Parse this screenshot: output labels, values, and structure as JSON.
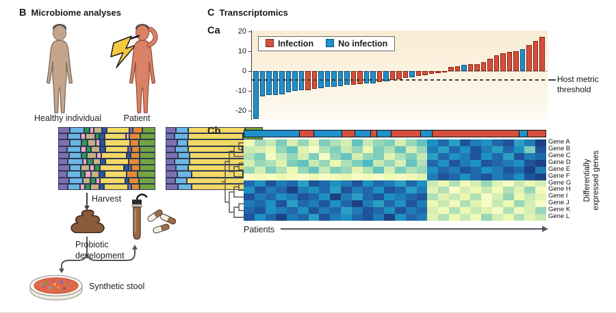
{
  "panel_b": {
    "label": "B",
    "title": "Microbiome analyses",
    "healthy_label": "Healthy individual",
    "patient_label": "Patient",
    "harvest_label": "Harvest",
    "probiotic_label": "Probiotic development",
    "synthetic_label": "Synthetic stool",
    "palette": {
      "P": "#7e6fb5",
      "S": "#6cb6e3",
      "G": "#2a9a4f",
      "K": "#f2a8c4",
      "T": "#c6b089",
      "D": "#2b55a0",
      "Y": "#f2d864",
      "O": "#e58a33",
      "V": "#74a43f"
    },
    "healthy_rows": [
      [
        [
          "P",
          12
        ],
        [
          "S",
          16
        ],
        [
          "G",
          5
        ],
        [
          "K",
          3
        ],
        [
          "T",
          8
        ],
        [
          "D",
          4
        ],
        [
          "Y",
          26
        ],
        [
          "P",
          2
        ],
        [
          "O",
          10
        ],
        [
          "V",
          14
        ]
      ],
      [
        [
          "P",
          10
        ],
        [
          "S",
          14
        ],
        [
          "K",
          4
        ],
        [
          "T",
          10
        ],
        [
          "G",
          3
        ],
        [
          "D",
          5
        ],
        [
          "Y",
          24
        ],
        [
          "K",
          2
        ],
        [
          "O",
          12
        ],
        [
          "V",
          16
        ]
      ],
      [
        [
          "P",
          12
        ],
        [
          "S",
          12
        ],
        [
          "G",
          6
        ],
        [
          "T",
          8
        ],
        [
          "K",
          3
        ],
        [
          "D",
          4
        ],
        [
          "Y",
          28
        ],
        [
          "O",
          9
        ],
        [
          "V",
          18
        ]
      ],
      [
        [
          "P",
          9
        ],
        [
          "S",
          15
        ],
        [
          "K",
          5
        ],
        [
          "G",
          4
        ],
        [
          "T",
          9
        ],
        [
          "D",
          5
        ],
        [
          "Y",
          25
        ],
        [
          "P",
          3
        ],
        [
          "O",
          8
        ],
        [
          "V",
          17
        ]
      ],
      [
        [
          "P",
          11
        ],
        [
          "S",
          13
        ],
        [
          "G",
          5
        ],
        [
          "T",
          10
        ],
        [
          "K",
          4
        ],
        [
          "Y",
          28
        ],
        [
          "D",
          3
        ],
        [
          "O",
          9
        ],
        [
          "V",
          17
        ]
      ],
      [
        [
          "P",
          10
        ],
        [
          "S",
          16
        ],
        [
          "K",
          3
        ],
        [
          "G",
          6
        ],
        [
          "T",
          7
        ],
        [
          "D",
          4
        ],
        [
          "Y",
          26
        ],
        [
          "O",
          11
        ],
        [
          "V",
          17
        ]
      ],
      [
        [
          "P",
          12
        ],
        [
          "S",
          12
        ],
        [
          "T",
          9
        ],
        [
          "K",
          4
        ],
        [
          "G",
          5
        ],
        [
          "Y",
          27
        ],
        [
          "D",
          4
        ],
        [
          "P",
          2
        ],
        [
          "O",
          8
        ],
        [
          "V",
          17
        ]
      ],
      [
        [
          "P",
          9
        ],
        [
          "S",
          14
        ],
        [
          "G",
          4
        ],
        [
          "K",
          5
        ],
        [
          "T",
          8
        ],
        [
          "D",
          5
        ],
        [
          "Y",
          24
        ],
        [
          "O",
          12
        ],
        [
          "V",
          19
        ]
      ],
      [
        [
          "P",
          11
        ],
        [
          "S",
          15
        ],
        [
          "T",
          7
        ],
        [
          "G",
          5
        ],
        [
          "K",
          3
        ],
        [
          "Y",
          28
        ],
        [
          "D",
          3
        ],
        [
          "O",
          10
        ],
        [
          "V",
          18
        ]
      ],
      [
        [
          "P",
          10
        ],
        [
          "S",
          13
        ],
        [
          "K",
          4
        ],
        [
          "G",
          5
        ],
        [
          "T",
          9
        ],
        [
          "D",
          4
        ],
        [
          "Y",
          27
        ],
        [
          "P",
          3
        ],
        [
          "O",
          8
        ],
        [
          "V",
          17
        ]
      ]
    ],
    "patient_rows": [
      [
        [
          "P",
          10
        ],
        [
          "S",
          12
        ],
        [
          "Y",
          60
        ],
        [
          "V",
          18
        ]
      ],
      [
        [
          "P",
          8
        ],
        [
          "S",
          14
        ],
        [
          "Y",
          58
        ],
        [
          "V",
          20
        ]
      ],
      [
        [
          "P",
          11
        ],
        [
          "S",
          10
        ],
        [
          "Y",
          62
        ],
        [
          "V",
          17
        ]
      ],
      [
        [
          "P",
          9
        ],
        [
          "S",
          13
        ],
        [
          "Y",
          57
        ],
        [
          "V",
          21
        ]
      ],
      [
        [
          "P",
          12
        ],
        [
          "S",
          11
        ],
        [
          "Y",
          59
        ],
        [
          "V",
          18
        ]
      ],
      [
        [
          "P",
          8
        ],
        [
          "S",
          15
        ],
        [
          "Y",
          60
        ],
        [
          "V",
          17
        ]
      ],
      [
        [
          "P",
          10
        ],
        [
          "S",
          12
        ],
        [
          "Y",
          62
        ],
        [
          "V",
          16
        ]
      ],
      [
        [
          "P",
          11
        ],
        [
          "S",
          14
        ],
        [
          "Y",
          55
        ],
        [
          "V",
          20
        ]
      ],
      [
        [
          "P",
          9
        ],
        [
          "S",
          11
        ],
        [
          "Y",
          63
        ],
        [
          "V",
          17
        ]
      ],
      [
        [
          "P",
          12
        ],
        [
          "S",
          13
        ],
        [
          "Y",
          58
        ],
        [
          "V",
          17
        ]
      ]
    ]
  },
  "panel_c": {
    "label": "C",
    "title": "Transcriptomics",
    "ca_label": "Ca",
    "cb_label": "Cb",
    "legend": [
      {
        "key": "infection",
        "label": "Infection",
        "color": "#d4503c",
        "border": "#8a1f10"
      },
      {
        "key": "no_infection",
        "label": "No infection",
        "color": "#2090cb",
        "border": "#0c4f7d"
      }
    ],
    "threshold_label": "Host metric threshold",
    "patients_label": "Patients",
    "genes_axis_label": "Differentially\nexpressed genes"
  },
  "chart_data": [
    {
      "type": "bar",
      "title": "Ca",
      "ylabel": "Host metric",
      "ylim": [
        -25,
        20
      ],
      "yticks": [
        20,
        10,
        0,
        -10,
        -20
      ],
      "grid": false,
      "legend_position": "top-left",
      "threshold": -4.5,
      "bars": [
        {
          "v": -24,
          "g": "no_infection"
        },
        {
          "v": -12.5,
          "g": "no_infection"
        },
        {
          "v": -12,
          "g": "no_infection"
        },
        {
          "v": -12,
          "g": "no_infection"
        },
        {
          "v": -11.5,
          "g": "no_infection"
        },
        {
          "v": -10.5,
          "g": "no_infection"
        },
        {
          "v": -10,
          "g": "no_infection"
        },
        {
          "v": -9.5,
          "g": "no_infection"
        },
        {
          "v": -9.5,
          "g": "infection"
        },
        {
          "v": -9,
          "g": "infection"
        },
        {
          "v": -8.5,
          "g": "no_infection"
        },
        {
          "v": -8,
          "g": "no_infection"
        },
        {
          "v": -8,
          "g": "no_infection"
        },
        {
          "v": -7.5,
          "g": "no_infection"
        },
        {
          "v": -7,
          "g": "no_infection"
        },
        {
          "v": -7,
          "g": "infection"
        },
        {
          "v": -6.5,
          "g": "infection"
        },
        {
          "v": -6,
          "g": "no_infection"
        },
        {
          "v": -6,
          "g": "no_infection"
        },
        {
          "v": -5.5,
          "g": "infection"
        },
        {
          "v": -5,
          "g": "no_infection"
        },
        {
          "v": -4.5,
          "g": "infection"
        },
        {
          "v": -4,
          "g": "infection"
        },
        {
          "v": -3.5,
          "g": "infection"
        },
        {
          "v": -3,
          "g": "no_infection"
        },
        {
          "v": -2.5,
          "g": "infection"
        },
        {
          "v": -2,
          "g": "infection"
        },
        {
          "v": -1.5,
          "g": "infection"
        },
        {
          "v": -1,
          "g": "infection"
        },
        {
          "v": -0.5,
          "g": "infection"
        },
        {
          "v": 2,
          "g": "infection"
        },
        {
          "v": 2.5,
          "g": "infection"
        },
        {
          "v": 3,
          "g": "no_infection"
        },
        {
          "v": 3.5,
          "g": "infection"
        },
        {
          "v": 3.5,
          "g": "infection"
        },
        {
          "v": 4.5,
          "g": "infection"
        },
        {
          "v": 6,
          "g": "infection"
        },
        {
          "v": 8,
          "g": "infection"
        },
        {
          "v": 9,
          "g": "infection"
        },
        {
          "v": 9.5,
          "g": "infection"
        },
        {
          "v": 10,
          "g": "infection"
        },
        {
          "v": 11,
          "g": "no_infection"
        },
        {
          "v": 13,
          "g": "infection"
        },
        {
          "v": 15,
          "g": "infection"
        },
        {
          "v": 17,
          "g": "infection"
        }
      ]
    },
    {
      "type": "heatmap",
      "xlabel": "Patients",
      "rows": [
        "Gene A",
        "Gene B",
        "Gene C",
        "Gene D",
        "Gene E",
        "Gene F",
        "Gene G",
        "Gene H",
        "Gene I",
        "Gene J",
        "Gene K",
        "Gene L"
      ],
      "n_cols": 28,
      "class_strip": [
        [
          "no_infection",
          82
        ],
        [
          "infection",
          21
        ],
        [
          "no_infection",
          41
        ],
        [
          "infection",
          19
        ],
        [
          "no_infection",
          22
        ],
        [
          "infection",
          9
        ],
        [
          "no_infection",
          20
        ],
        [
          "infection",
          44
        ],
        [
          "no_infection",
          16
        ],
        [
          "infection",
          130
        ],
        [
          "no_infection",
          11
        ],
        [
          "infection",
          27
        ]
      ],
      "palette": [
        [
          0,
          "#ffffd9"
        ],
        [
          0.2,
          "#edf8b1"
        ],
        [
          0.35,
          "#c7e9b4"
        ],
        [
          0.5,
          "#7fcdbb"
        ],
        [
          0.62,
          "#41b6c4"
        ],
        [
          0.75,
          "#1d91c0"
        ],
        [
          0.87,
          "#225ea8"
        ],
        [
          1,
          "#16316e"
        ]
      ],
      "matrix": [
        [
          0.18,
          0.42,
          0.35,
          0.5,
          0.3,
          0.45,
          0.25,
          0.5,
          0.4,
          0.3,
          0.55,
          0.35,
          0.45,
          0.5,
          0.3,
          0.45,
          0.55,
          0.75,
          0.85,
          0.7,
          0.9,
          0.8,
          0.75,
          0.85,
          0.9,
          0.7,
          0.8,
          0.95
        ],
        [
          0.35,
          0.3,
          0.2,
          0.45,
          0.55,
          0.25,
          0.1,
          0.4,
          0.5,
          0.35,
          0.45,
          0.2,
          0.5,
          0.4,
          0.55,
          0.3,
          0.45,
          0.8,
          0.7,
          0.85,
          0.75,
          0.9,
          0.8,
          0.7,
          0.85,
          0.75,
          0.5,
          0.9
        ],
        [
          0.4,
          0.5,
          0.1,
          0.35,
          0.45,
          0.3,
          0.5,
          0.08,
          0.45,
          0.55,
          0.3,
          0.45,
          0.5,
          0.25,
          0.4,
          0.5,
          0.35,
          0.7,
          0.85,
          0.75,
          0.8,
          0.9,
          0.75,
          0.85,
          0.7,
          0.9,
          0.8,
          0.85
        ],
        [
          0.3,
          0.45,
          0.4,
          0.25,
          0.5,
          0.55,
          0.35,
          0.45,
          0.2,
          0.4,
          0.5,
          0.6,
          0.35,
          0.45,
          0.3,
          0.55,
          0.4,
          0.85,
          0.75,
          0.9,
          0.8,
          0.75,
          0.9,
          0.85,
          0.8,
          0.75,
          0.9,
          0.95
        ],
        [
          0.45,
          0.3,
          0.5,
          0.4,
          0.2,
          0.45,
          0.55,
          0.35,
          0.5,
          0.45,
          0.25,
          0.4,
          0.55,
          0.3,
          0.5,
          0.4,
          0.45,
          0.75,
          0.85,
          0.8,
          0.9,
          0.85,
          0.75,
          0.8,
          0.9,
          0.85,
          0.95,
          0.8
        ],
        [
          0.08,
          0.15,
          0.1,
          0.2,
          0.12,
          0.08,
          0.18,
          0.1,
          0.15,
          0.22,
          0.1,
          0.15,
          0.08,
          0.2,
          0.12,
          0.18,
          0.25,
          0.8,
          0.9,
          0.85,
          0.75,
          0.85,
          0.9,
          0.8,
          0.85,
          0.75,
          0.9,
          0.95
        ],
        [
          0.85,
          0.75,
          0.9,
          0.8,
          0.85,
          0.7,
          0.9,
          0.85,
          0.75,
          0.8,
          0.9,
          0.75,
          0.85,
          0.8,
          0.7,
          0.85,
          0.75,
          0.35,
          0.2,
          0.4,
          0.15,
          0.3,
          0.45,
          0.25,
          0.1,
          0.35,
          0.2,
          0.3
        ],
        [
          0.75,
          0.9,
          0.8,
          0.85,
          0.95,
          0.8,
          0.75,
          0.85,
          0.7,
          0.9,
          0.8,
          0.85,
          0.75,
          0.9,
          0.85,
          0.7,
          0.8,
          0.25,
          0.4,
          0.1,
          0.3,
          0.2,
          0.35,
          0.15,
          0.4,
          0.25,
          0.45,
          0.15
        ],
        [
          0.9,
          0.8,
          0.85,
          0.75,
          0.8,
          0.9,
          0.85,
          0.75,
          0.95,
          0.8,
          0.7,
          0.85,
          0.9,
          0.75,
          0.8,
          0.85,
          0.9,
          0.4,
          0.25,
          0.35,
          0.2,
          0.4,
          0.1,
          0.3,
          0.45,
          0.2,
          0.35,
          0.25
        ],
        [
          0.8,
          0.85,
          0.75,
          0.9,
          0.7,
          0.85,
          0.8,
          0.9,
          0.75,
          0.85,
          0.95,
          0.8,
          0.7,
          0.85,
          0.75,
          0.9,
          0.8,
          0.2,
          0.35,
          0.15,
          0.4,
          0.25,
          0.1,
          0.35,
          0.2,
          0.45,
          0.3,
          0.1
        ],
        [
          0.85,
          0.9,
          0.75,
          0.8,
          0.85,
          0.75,
          0.9,
          0.8,
          0.85,
          0.7,
          0.8,
          0.9,
          0.85,
          0.75,
          0.9,
          0.8,
          0.85,
          0.3,
          0.15,
          0.4,
          0.2,
          0.35,
          0.25,
          0.1,
          0.4,
          0.15,
          0.3,
          0.45
        ],
        [
          0.9,
          0.75,
          0.85,
          0.95,
          0.8,
          0.85,
          0.7,
          0.9,
          0.8,
          0.75,
          0.85,
          0.9,
          0.8,
          0.95,
          0.75,
          0.85,
          0.8,
          0.25,
          0.4,
          0.2,
          0.35,
          0.15,
          0.45,
          0.3,
          0.2,
          0.4,
          0.25,
          0.35
        ]
      ]
    }
  ]
}
